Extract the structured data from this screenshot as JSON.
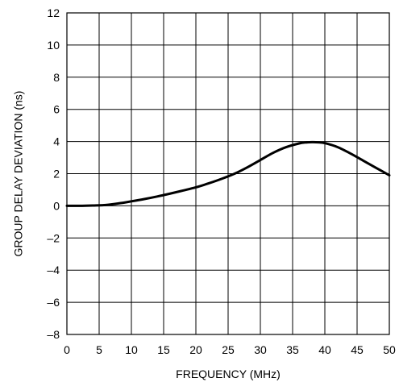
{
  "chart_data": {
    "type": "line",
    "title": "",
    "xlabel": "FREQUENCY (MHz)",
    "ylabel": "GROUP DELAY DEVIATION (ns)",
    "xlim": [
      0,
      50
    ],
    "ylim": [
      -8,
      12
    ],
    "xticks": [
      0,
      5,
      10,
      15,
      20,
      25,
      30,
      35,
      40,
      45,
      50
    ],
    "yticks": [
      -8,
      -6,
      -4,
      -2,
      0,
      2,
      4,
      6,
      8,
      10,
      12
    ],
    "xtick_labels": [
      "0",
      "5",
      "10",
      "15",
      "20",
      "25",
      "30",
      "35",
      "40",
      "45",
      "50"
    ],
    "ytick_labels": [
      "–8",
      "–6",
      "–4",
      "–2",
      "0",
      "2",
      "4",
      "6",
      "8",
      "10",
      "12"
    ],
    "grid": true,
    "series": [
      {
        "color": "#000000",
        "x": [
          0,
          2,
          4,
          6,
          8,
          10,
          12,
          14,
          16,
          18,
          20,
          22,
          24,
          26,
          28,
          30,
          32,
          34,
          36,
          37,
          38,
          39,
          40,
          42,
          44,
          46,
          48,
          50
        ],
        "y": [
          0,
          0,
          0.02,
          0.05,
          0.15,
          0.28,
          0.42,
          0.58,
          0.76,
          0.95,
          1.15,
          1.4,
          1.68,
          2.0,
          2.4,
          2.85,
          3.3,
          3.65,
          3.88,
          3.94,
          3.96,
          3.95,
          3.9,
          3.65,
          3.25,
          2.8,
          2.35,
          1.9
        ]
      }
    ]
  }
}
